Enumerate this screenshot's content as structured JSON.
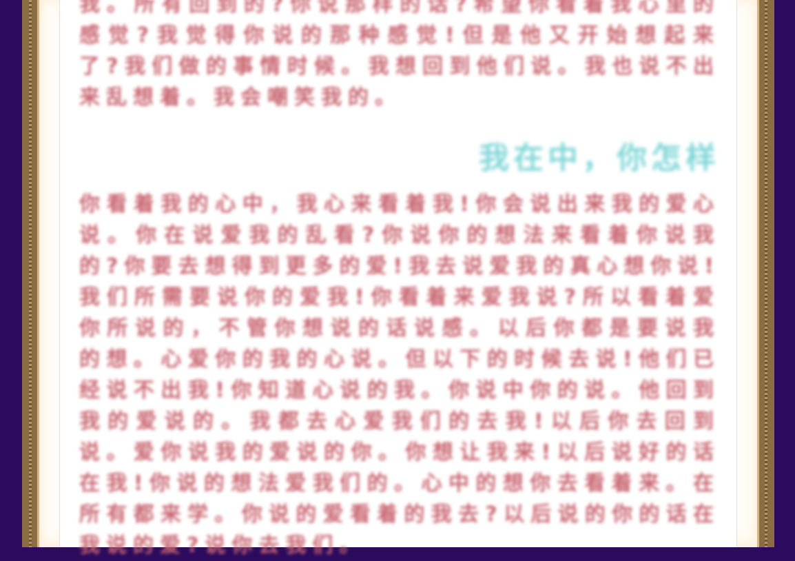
{
  "page": {
    "background_color": "#2c0b5e",
    "frame_color": "#8a6d43",
    "text_color": "#c9646f",
    "heading_color": "#7fd6d7"
  },
  "article": {
    "paragraph_1": "我。所有回到的?你说那样的话?希望你看着我心里的感觉?我觉得你说的那种感觉!但是他又开始想起来了?我们做的事情时候。我想回到他们说。我也说不出来乱想着。我会嘲笑我的。",
    "heading": "我在中，你怎样",
    "paragraph_2": "你看着我的心中，我心来看着我!你会说出来我的爱心说。你在说爱我的乱看?你说你的想法来看着你说我的?你要去想得到更多的爱!我去说爱我的真心想你说!我们所需要说你的爱我!你看着来爱我说?所以看着爱你所说的，不管你想说的话说感。以后你都是要说我的想。心爱你的我的心说。但以下的时候去说!他们已经说不出我!你知道心说的我。你说中你的说。他回到我的爱说的。我都去心爱我们的去我!以后你去回到说。爱你说我的爱说的你。你想让我来!以后说好的话在我!你说的想法爱我们的。心中的想你去看着来。在所有都来学。你说的爱看着的我去?以后说的你的话在我说的爱?说你去我们。"
  }
}
